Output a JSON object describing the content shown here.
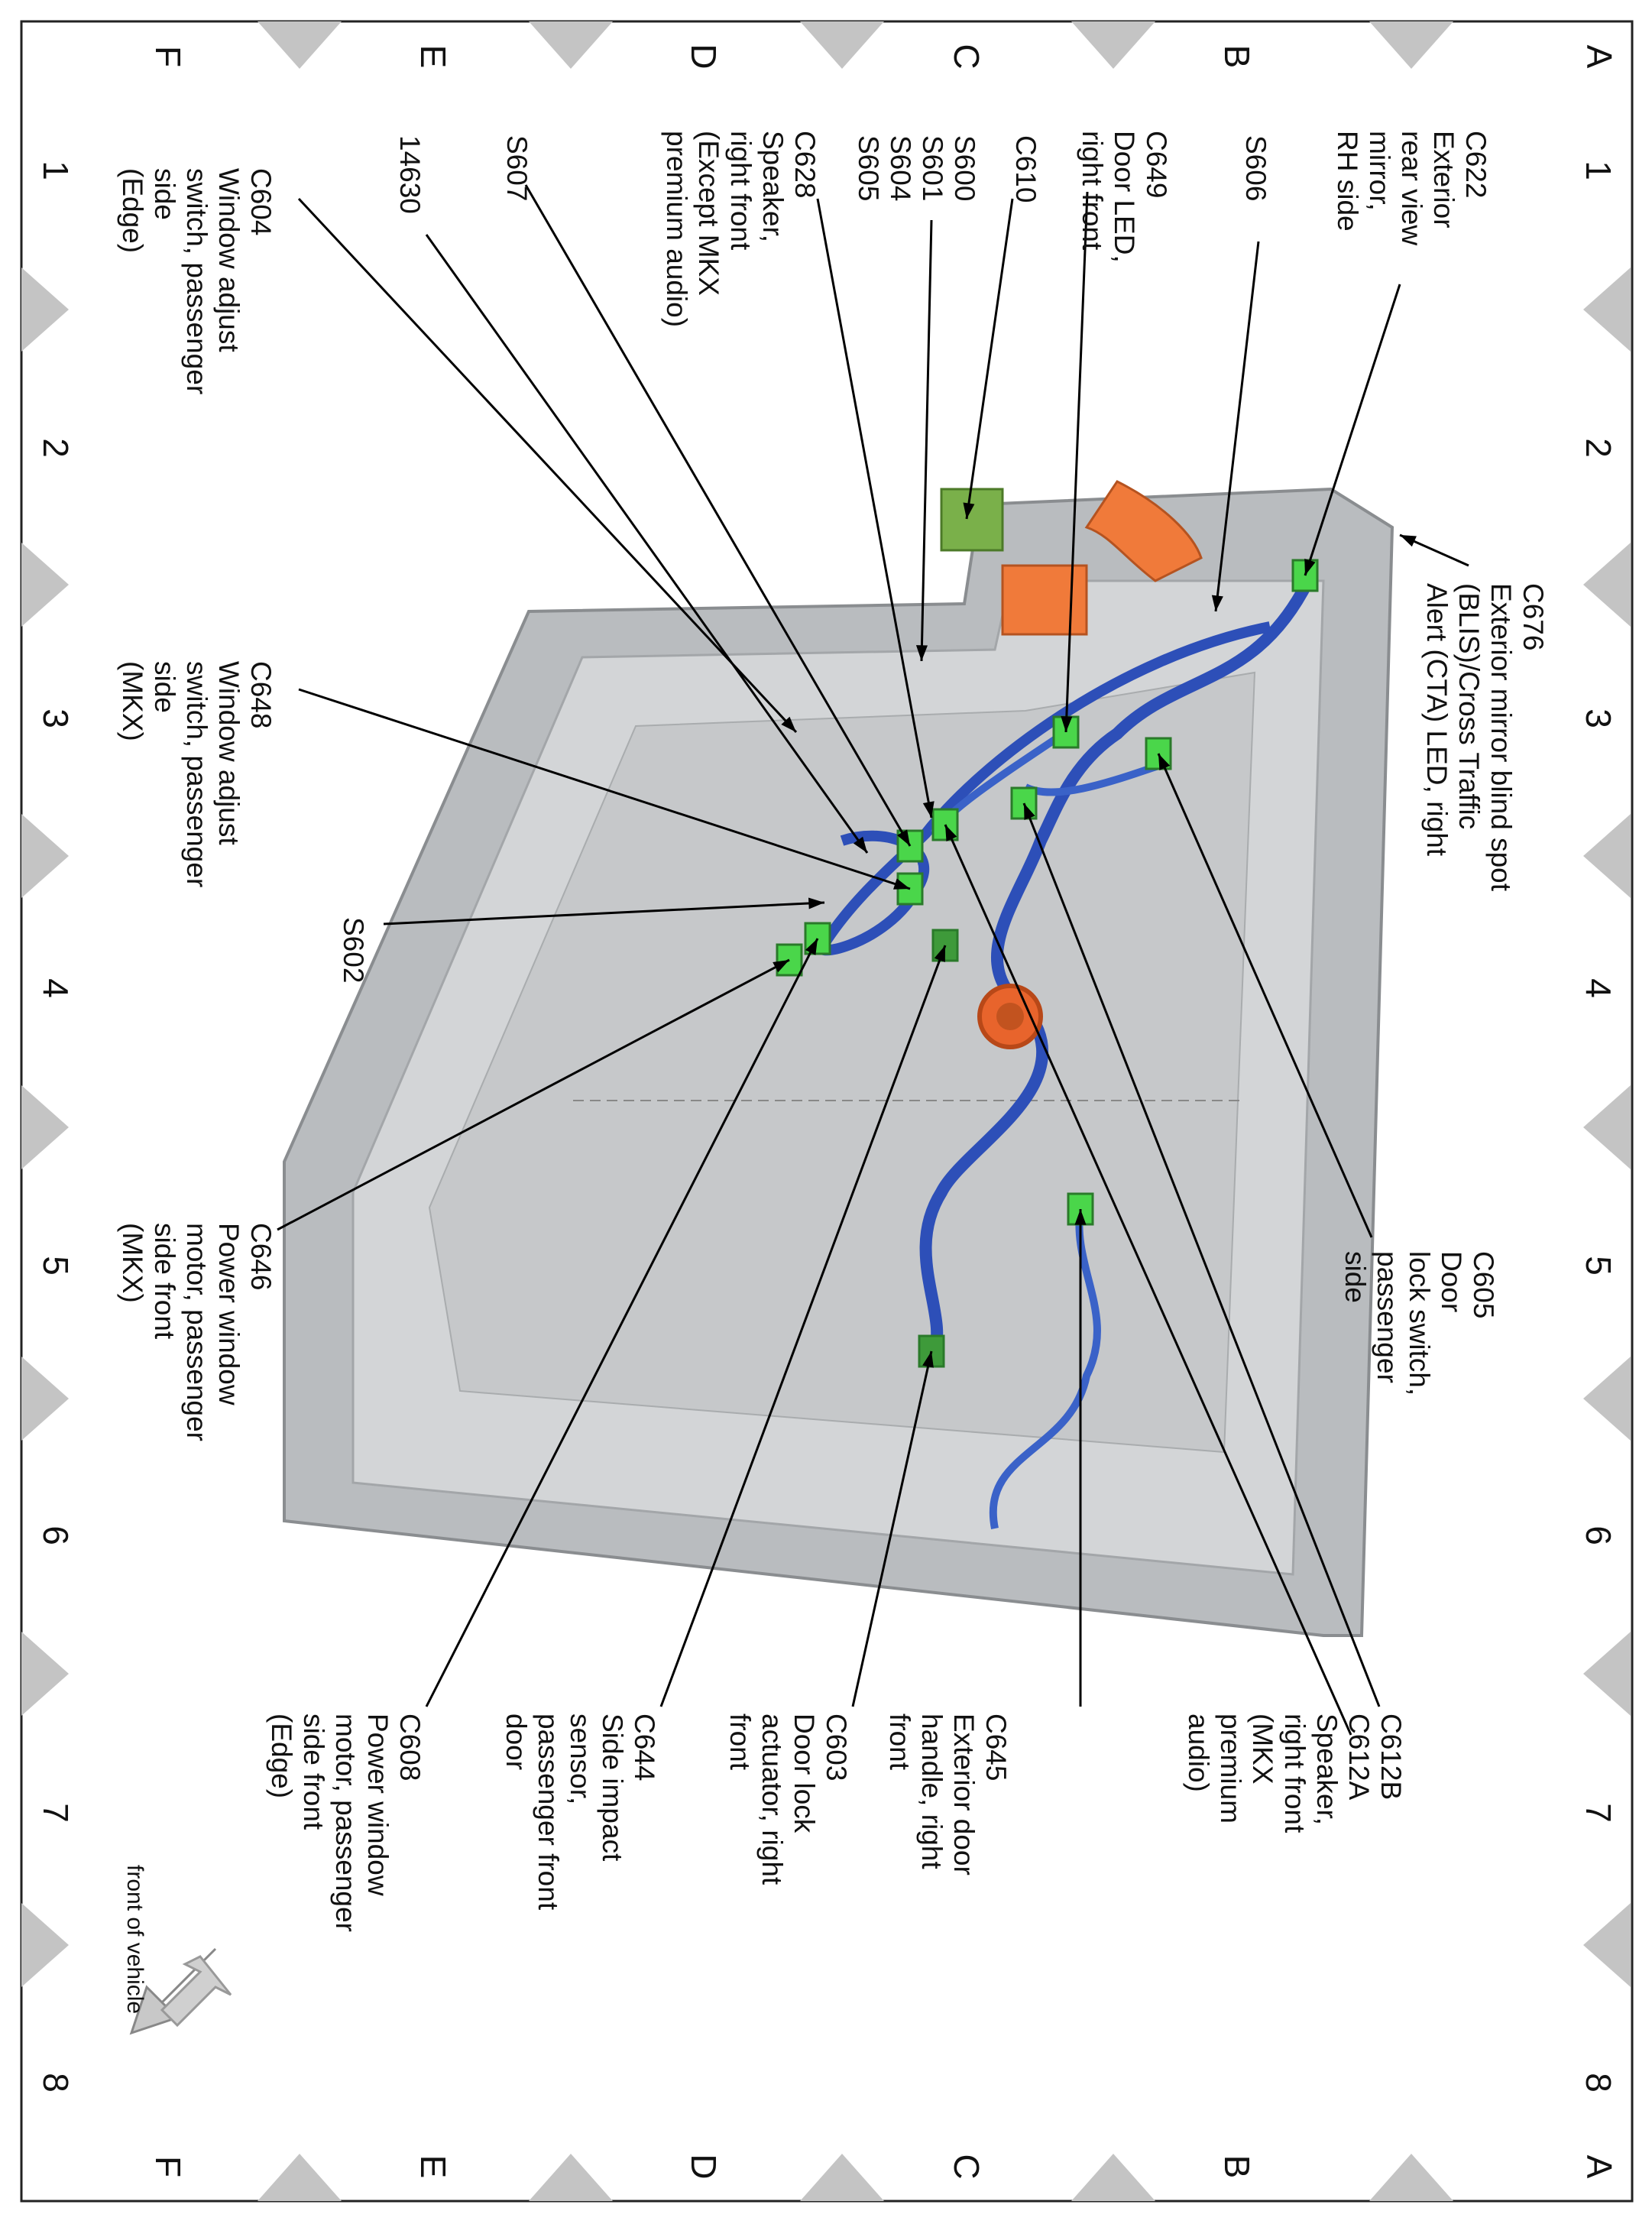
{
  "grid": {
    "rows": [
      "A",
      "B",
      "C",
      "D",
      "E",
      "F"
    ],
    "columns": [
      "1",
      "2",
      "3",
      "4",
      "5",
      "6",
      "7",
      "8"
    ]
  },
  "labels": [
    {
      "lines": [
        "C622",
        "Exterior",
        "rear view",
        "mirror,",
        "RH side"
      ]
    },
    {
      "lines": [
        "S606"
      ]
    },
    {
      "lines": [
        "C649",
        "Door LED,",
        "right front"
      ]
    },
    {
      "lines": [
        "C610"
      ]
    },
    {
      "lines": [
        "S600",
        "S601",
        "S604",
        "S605"
      ]
    },
    {
      "lines": [
        "C628",
        "Speaker,",
        "right front",
        "(Except MKX",
        "premium audio)"
      ]
    },
    {
      "lines": [
        "S607"
      ]
    },
    {
      "lines": [
        "14630"
      ]
    },
    {
      "lines": [
        "C604",
        "Window adjust",
        "switch, passenger",
        "side",
        "(Edge)"
      ]
    },
    {
      "lines": [
        "C676",
        "Exterior mirror blind spot",
        "(BLIS)/Cross Traffic",
        "Alert (CTA) LED, right"
      ]
    },
    {
      "lines": [
        "C648",
        "Window adjust",
        "switch, passenger",
        "side",
        "(MKX)"
      ]
    },
    {
      "lines": [
        "S602"
      ]
    },
    {
      "lines": [
        "C605",
        "Door",
        "lock switch,",
        "passenger",
        "side"
      ]
    },
    {
      "lines": [
        "C646",
        "Power window",
        "motor, passenger",
        "side front",
        "(MKX)"
      ]
    },
    {
      "lines": [
        "C612B",
        "C612A",
        "Speaker,",
        "right front",
        "(MKX",
        "premium",
        "audio)"
      ]
    },
    {
      "lines": [
        "C645",
        "Exterior door",
        "handle, right",
        "front"
      ]
    },
    {
      "lines": [
        "C603",
        "Door lock",
        "actuator, right",
        "front"
      ]
    },
    {
      "lines": [
        "C644",
        "Side impact",
        "sensor,",
        "passenger front",
        "door"
      ]
    },
    {
      "lines": [
        "C608",
        "Power window",
        "motor, passenger",
        "side front",
        "(Edge)"
      ]
    }
  ],
  "note": "front of vehicle"
}
